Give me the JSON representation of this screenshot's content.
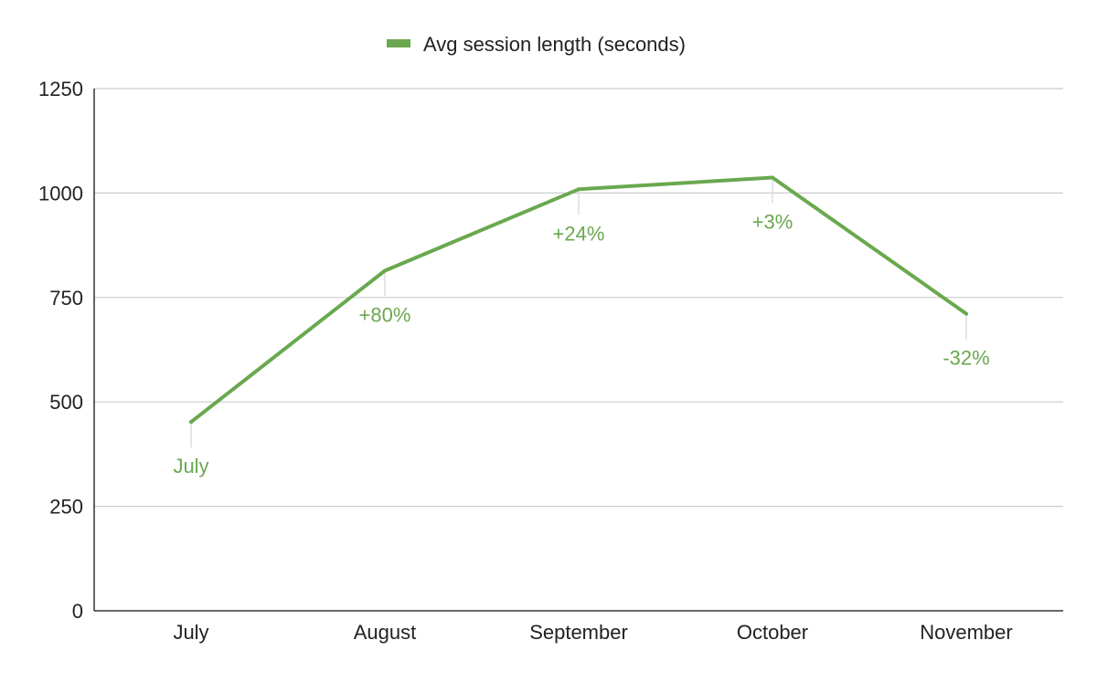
{
  "chart_data": {
    "type": "line",
    "title": "",
    "xlabel": "",
    "ylabel": "",
    "categories": [
      "July",
      "August",
      "September",
      "October",
      "November"
    ],
    "series": [
      {
        "name": "Avg session length (seconds)",
        "values": [
          452,
          814,
          1009,
          1037,
          711
        ],
        "data_labels": [
          "July",
          "+80%",
          "+24%",
          "+3%",
          "-32%"
        ]
      }
    ],
    "ylim": [
      0,
      1250
    ],
    "yticks": [
      "0",
      "250",
      "500",
      "750",
      "1000",
      "1250"
    ],
    "legend": {
      "position": "top",
      "color": "#6aa84f"
    },
    "grid": true,
    "colors": {
      "series": "#6aa84f",
      "grid": "#cccccc",
      "axis": "#333333"
    }
  }
}
